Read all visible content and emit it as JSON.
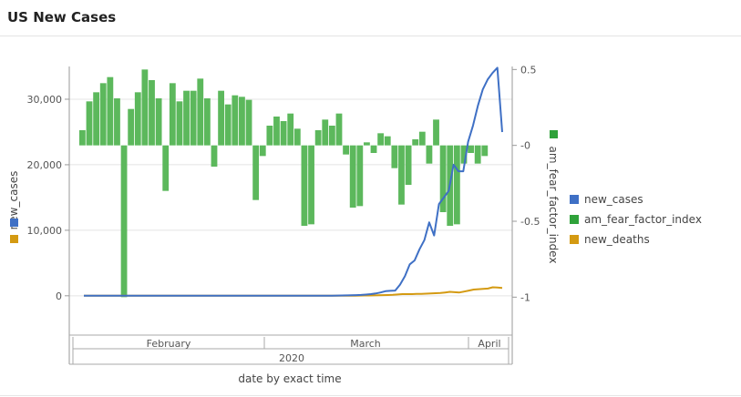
{
  "panel": {
    "title": "US New Cases"
  },
  "chart_data": {
    "type": "bar+line",
    "title": "US New Cases",
    "xlabel": "date by exact time",
    "x_axis": {
      "months": [
        "February",
        "March",
        "April"
      ],
      "year": "2020",
      "date_range": [
        "2020-01-22",
        "2020-04-11"
      ]
    },
    "left_axis": {
      "label": "new_cases",
      "ticks": [
        0,
        10000,
        20000,
        30000
      ],
      "tick_labels": [
        "0",
        "10,000",
        "20,000",
        "30,000"
      ],
      "ylim": [
        -6000,
        35000
      ],
      "legend_colors": [
        "#3f70c5",
        "#d49a12"
      ]
    },
    "right_axis": {
      "label": "am_fear_factor_index",
      "ticks": [
        0.5,
        0,
        -0.5,
        -1
      ],
      "tick_labels": [
        "0.5",
        "-0",
        "-0.5",
        "-1"
      ],
      "ylim": [
        -1.25,
        0.52
      ],
      "legend_color": "#2fa23a"
    },
    "legend": {
      "position": "right",
      "items": [
        {
          "name": "new_cases",
          "color": "#3f70c5"
        },
        {
          "name": "am_fear_factor_index",
          "color": "#2fa23a"
        },
        {
          "name": "new_deaths",
          "color": "#d49a12"
        }
      ]
    },
    "series": [
      {
        "name": "am_fear_factor_index",
        "type": "bar",
        "axis": "right",
        "color": "#5cb85c",
        "values": [
          0.1,
          0.29,
          0.35,
          0.41,
          0.45,
          0.31,
          -1.0,
          0.24,
          0.35,
          0.5,
          0.43,
          0.31,
          -0.3,
          0.41,
          0.29,
          0.36,
          0.36,
          0.44,
          0.31,
          -0.14,
          0.36,
          0.27,
          0.33,
          0.32,
          0.3,
          -0.36,
          -0.07,
          0.13,
          0.19,
          0.16,
          0.21,
          0.11,
          -0.53,
          -0.52,
          0.1,
          0.17,
          0.13,
          0.21,
          -0.06,
          -0.41,
          -0.4,
          0.02,
          -0.05,
          0.08,
          0.06,
          -0.15,
          -0.39,
          -0.26,
          0.04,
          0.09,
          -0.12,
          0.17,
          -0.44,
          -0.53,
          -0.52,
          -0.12,
          -0.05,
          -0.12,
          -0.07
        ]
      },
      {
        "name": "new_cases",
        "type": "line",
        "axis": "left",
        "color": "#3f70c5",
        "values": [
          0,
          0,
          0,
          0,
          0,
          0,
          0,
          0,
          0,
          0,
          0,
          0,
          0,
          0,
          0,
          0,
          0,
          0,
          0,
          0,
          0,
          0,
          0,
          0,
          0,
          0,
          0,
          0,
          0,
          0,
          0,
          0,
          0,
          0,
          0,
          0,
          0,
          0,
          0,
          0,
          0,
          0,
          0,
          0,
          0,
          0,
          0,
          0,
          2,
          5,
          10,
          20,
          30,
          45,
          60,
          80,
          100,
          130,
          180,
          250,
          350,
          500,
          700,
          750,
          800,
          1700,
          3000,
          4800,
          5400,
          7100,
          8500,
          11200,
          9200,
          14000,
          15000,
          16000,
          20000,
          19000,
          19000,
          23500,
          26000,
          29000,
          31500,
          33000,
          34000,
          34800,
          25000
        ]
      },
      {
        "name": "new_deaths",
        "type": "line",
        "axis": "left",
        "color": "#d49a12",
        "values": [
          0,
          0,
          0,
          0,
          0,
          0,
          0,
          0,
          0,
          0,
          0,
          0,
          0,
          0,
          0,
          0,
          0,
          0,
          0,
          0,
          0,
          0,
          0,
          0,
          0,
          0,
          0,
          0,
          0,
          0,
          0,
          0,
          0,
          0,
          0,
          0,
          0,
          0,
          0,
          0,
          0,
          0,
          0,
          0,
          0,
          0,
          0,
          0,
          0,
          1,
          2,
          3,
          5,
          6,
          8,
          10,
          15,
          20,
          30,
          40,
          50,
          60,
          80,
          100,
          120,
          150,
          200,
          250,
          250,
          260,
          280,
          300,
          320,
          350,
          400,
          420,
          500,
          600,
          550,
          500,
          650,
          800,
          950,
          1000,
          1050,
          1100,
          1300,
          1250,
          1200
        ]
      }
    ]
  }
}
